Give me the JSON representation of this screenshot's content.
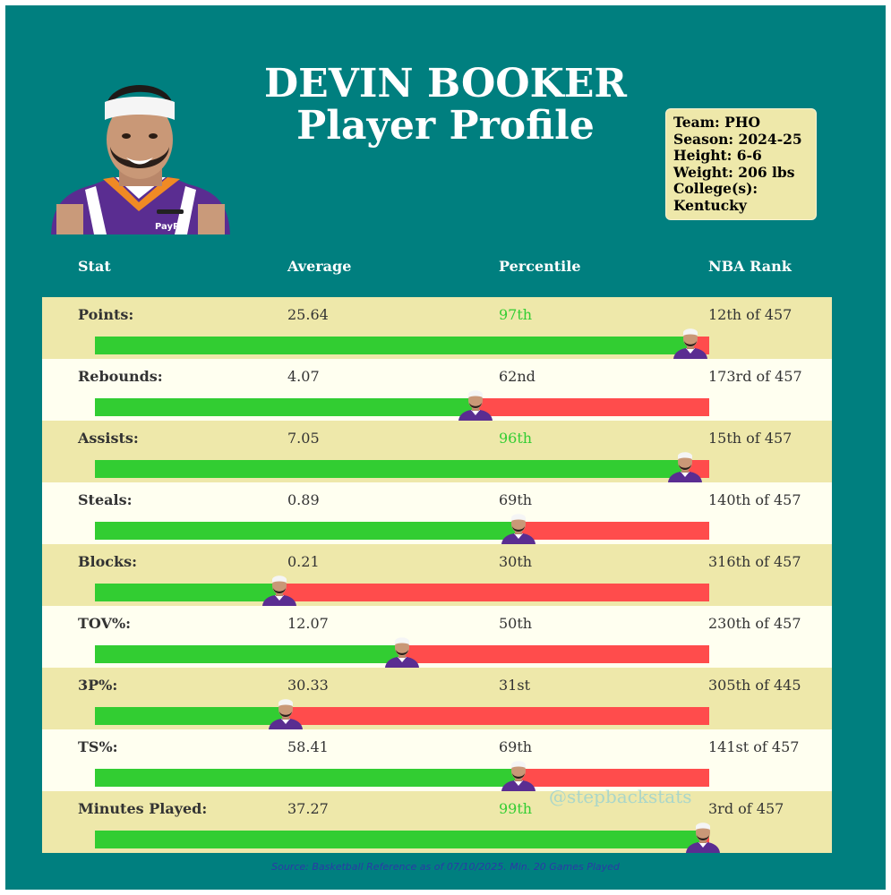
{
  "title": {
    "line1": "DEVIN BOOKER",
    "line2": "Player Profile"
  },
  "info": {
    "team": "Team: PHO",
    "season": "Season: 2024-25",
    "height": "Height: 6-6",
    "weight": "Weight: 206 lbs",
    "college_label": "College(s):",
    "college": "Kentucky"
  },
  "headers": {
    "stat": "Stat",
    "average": "Average",
    "percentile": "Percentile",
    "rank": "NBA Rank"
  },
  "watermark": "@stepbackstats",
  "source": "Source: Basketball Reference as of 07/10/2025. Min. 20 Games Played",
  "colors": {
    "background": "#007F7F",
    "row_dark": "#EEE8AA",
    "row_light": "#FFFFF0",
    "bar_good": "#32CD32",
    "bar_bad": "#FF4C4C",
    "highlight_text": "#32CD32"
  },
  "chart_data": {
    "type": "bar",
    "orientation": "horizontal",
    "xlim": [
      0,
      100
    ],
    "highlight_threshold": 90,
    "rows": [
      {
        "stat": "Points:",
        "average": "25.64",
        "percentile_label": "97th",
        "rank": "12th of 457",
        "percentile": 97
      },
      {
        "stat": "Rebounds:",
        "average": "4.07",
        "percentile_label": "62nd",
        "rank": "173rd of 457",
        "percentile": 62
      },
      {
        "stat": "Assists:",
        "average": "7.05",
        "percentile_label": "96th",
        "rank": "15th of 457",
        "percentile": 96
      },
      {
        "stat": "Steals:",
        "average": "0.89",
        "percentile_label": "69th",
        "rank": "140th of 457",
        "percentile": 69
      },
      {
        "stat": "Blocks:",
        "average": "0.21",
        "percentile_label": "30th",
        "rank": "316th of 457",
        "percentile": 30
      },
      {
        "stat": "TOV%:",
        "average": "12.07",
        "percentile_label": "50th",
        "rank": "230th of 457",
        "percentile": 50
      },
      {
        "stat": "3P%:",
        "average": "30.33",
        "percentile_label": "31st",
        "rank": "305th of 445",
        "percentile": 31
      },
      {
        "stat": "TS%:",
        "average": "58.41",
        "percentile_label": "69th",
        "rank": "141st of 457",
        "percentile": 69
      },
      {
        "stat": "Minutes Played:",
        "average": "37.27",
        "percentile_label": "99th",
        "rank": "3rd of 457",
        "percentile": 99
      }
    ]
  }
}
